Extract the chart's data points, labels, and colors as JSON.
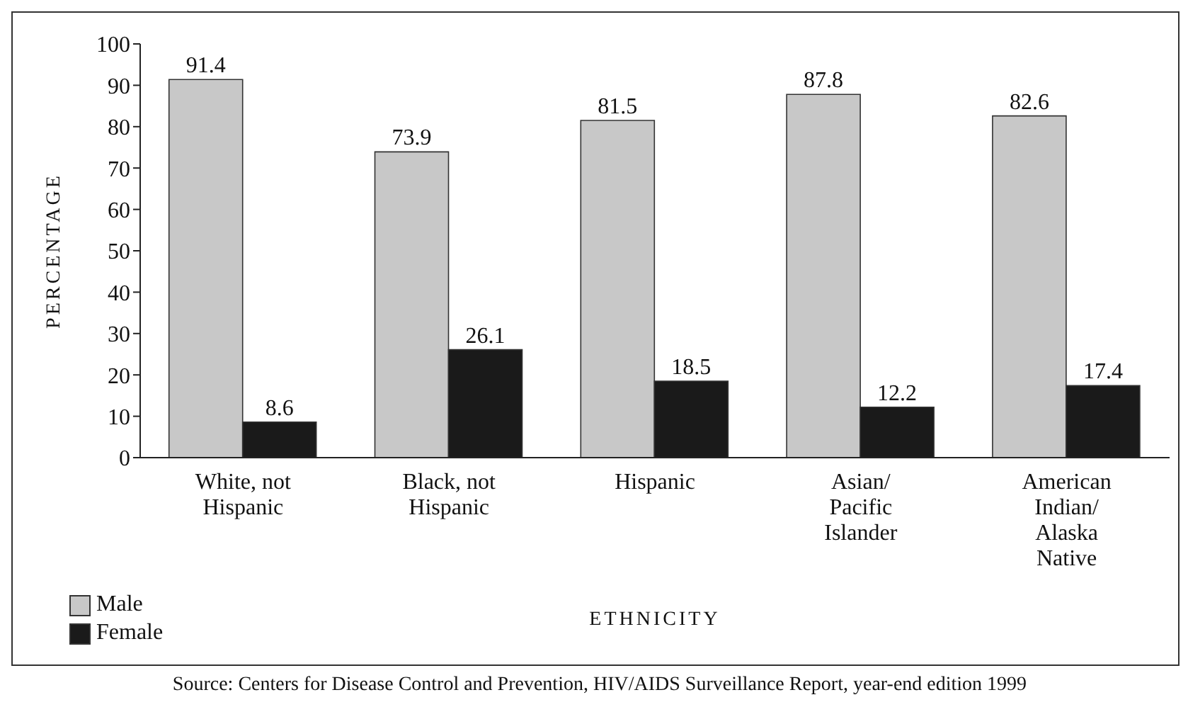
{
  "chart_data": {
    "type": "bar",
    "xlabel": "ETHNICITY",
    "ylabel": "PERCENTAGE",
    "categories": [
      "White, not Hispanic",
      "Black, not Hispanic",
      "Hispanic",
      "Asian/Pacific Islander",
      "American Indian/Alaska Native"
    ],
    "series": [
      {
        "name": "Male",
        "color": "#c8c8c8",
        "values": [
          91.4,
          73.9,
          81.5,
          87.8,
          82.6
        ]
      },
      {
        "name": "Female",
        "color": "#1a1a1a",
        "values": [
          8.6,
          26.1,
          18.5,
          12.2,
          17.4
        ]
      }
    ],
    "ylim": [
      0,
      100
    ],
    "yticks": [
      0,
      10,
      20,
      30,
      40,
      50,
      60,
      70,
      80,
      90,
      100
    ],
    "grid": false,
    "legend": "bottom left",
    "data_labels": true,
    "annotations": [
      "Source: Centers for Disease Control and Prevention, HIV/AIDS Surveillance Report, year-end edition 1999"
    ]
  }
}
